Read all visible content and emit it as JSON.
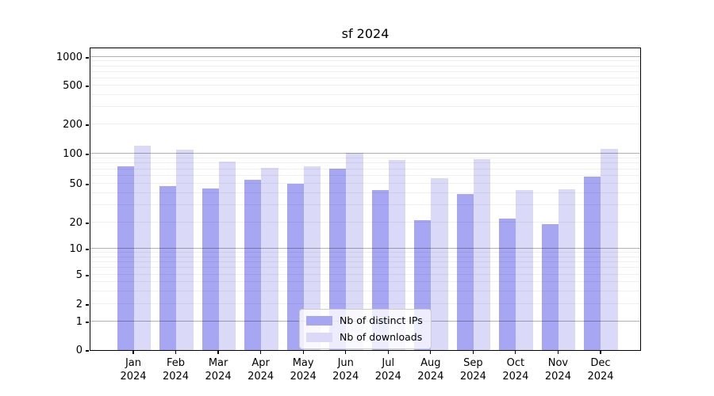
{
  "chart_data": {
    "type": "bar",
    "title": "sf 2024",
    "categories": [
      "Jan 2024",
      "Feb 2024",
      "Mar 2024",
      "Apr 2024",
      "May 2024",
      "Jun 2024",
      "Jul 2024",
      "Aug 2024",
      "Sep 2024",
      "Oct 2024",
      "Nov 2024",
      "Dec 2024"
    ],
    "series": [
      {
        "name": "Nb of distinct IPs",
        "color": "#a6a6f2",
        "values": [
          75,
          47,
          45,
          55,
          50,
          71,
          43,
          21,
          39,
          22,
          19,
          59
        ]
      },
      {
        "name": "Nb of downloads",
        "color": "#dadaf8",
        "values": [
          121,
          110,
          83,
          72,
          75,
          102,
          86,
          57,
          88,
          43,
          44,
          112
        ]
      }
    ],
    "xlabel": "",
    "ylabel": "",
    "yscale": "symlog",
    "yticks": [
      0,
      1,
      2,
      5,
      10,
      20,
      50,
      100,
      200,
      500,
      1000
    ],
    "ylim": [
      0,
      1200
    ],
    "grid": true,
    "legend_position": "lower center"
  }
}
